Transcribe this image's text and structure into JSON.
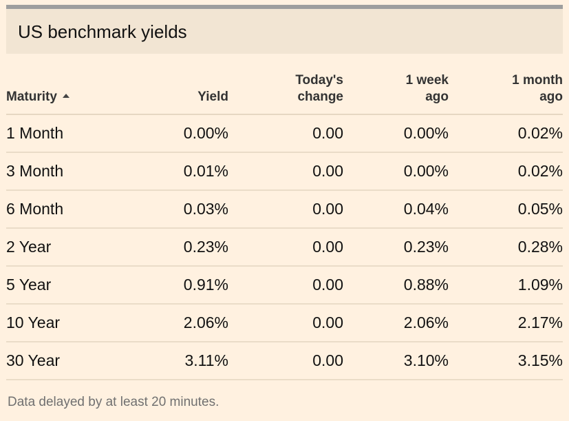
{
  "title": "US benchmark yields",
  "columns": {
    "maturity": "Maturity",
    "yield": "Yield",
    "todays_change_line1": "Today's",
    "todays_change_line2": "change",
    "week_line1": "1 week",
    "week_line2": "ago",
    "month_line1": "1 month",
    "month_line2": "ago"
  },
  "sort": {
    "column": "Maturity",
    "direction": "ascending",
    "icon": "sort-up-icon"
  },
  "rows": [
    {
      "maturity": "1 Month",
      "yield": "0.00%",
      "change": "0.00",
      "week_ago": "0.00%",
      "month_ago": "0.02%"
    },
    {
      "maturity": "3 Month",
      "yield": "0.01%",
      "change": "0.00",
      "week_ago": "0.00%",
      "month_ago": "0.02%"
    },
    {
      "maturity": "6 Month",
      "yield": "0.03%",
      "change": "0.00",
      "week_ago": "0.04%",
      "month_ago": "0.05%"
    },
    {
      "maturity": "2 Year",
      "yield": "0.23%",
      "change": "0.00",
      "week_ago": "0.23%",
      "month_ago": "0.28%"
    },
    {
      "maturity": "5 Year",
      "yield": "0.91%",
      "change": "0.00",
      "week_ago": "0.88%",
      "month_ago": "1.09%"
    },
    {
      "maturity": "10 Year",
      "yield": "2.06%",
      "change": "0.00",
      "week_ago": "2.06%",
      "month_ago": "2.17%"
    },
    {
      "maturity": "30 Year",
      "yield": "3.11%",
      "change": "0.00",
      "week_ago": "3.10%",
      "month_ago": "3.15%"
    }
  ],
  "footnote": "Data delayed by at least 20 minutes.",
  "colors": {
    "background": "#fff1e0",
    "header_band": "#f2e5d3",
    "top_rule": "#9e9e9e",
    "row_divider": "#eadcc8"
  }
}
